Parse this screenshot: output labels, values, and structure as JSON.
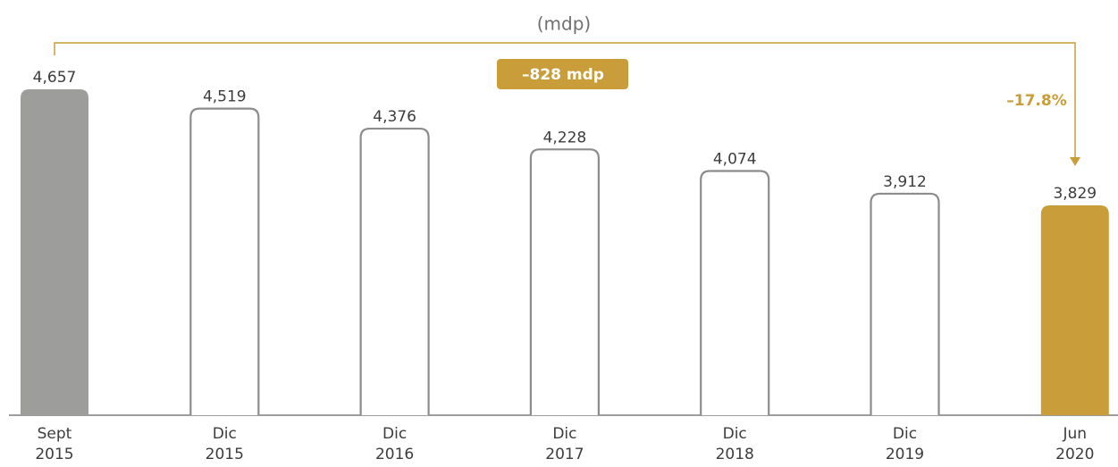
{
  "chart_data": {
    "type": "bar",
    "subtitle": "(mdp)",
    "categories": [
      "Sept 2015",
      "Dic 2015",
      "Dic 2016",
      "Dic 2017",
      "Dic 2018",
      "Dic 2019",
      "Jun 2020"
    ],
    "values": [
      4657,
      4519,
      4376,
      4228,
      4074,
      3912,
      3829
    ],
    "value_labels": [
      "4,657",
      "4,519",
      "4,376",
      "4,228",
      "4,074",
      "3,912",
      "3,829"
    ],
    "colors": [
      "#9d9d9c",
      "#ffffff",
      "#ffffff",
      "#ffffff",
      "#ffffff",
      "#ffffff",
      "#c89d3a"
    ],
    "edgecolor": "#8c8c8c",
    "ylim": [
      2332,
      4800
    ],
    "annotations": [
      "–828 mdp",
      "–17.8%"
    ],
    "annotation_color": "#c89d3a"
  }
}
